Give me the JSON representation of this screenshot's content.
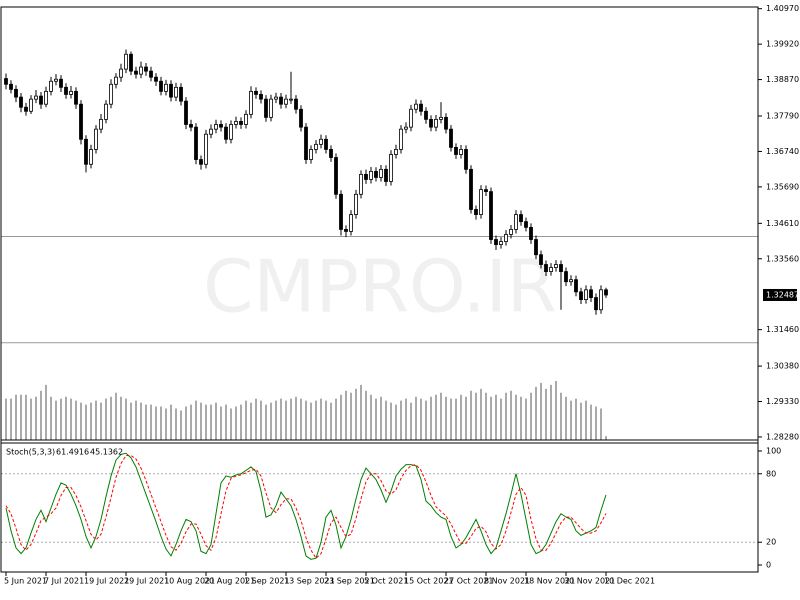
{
  "chart_data": [
    {
      "type": "candlestick",
      "watermark": "CMPRO.IR",
      "categories": [
        "5 Jun 2021",
        null,
        null,
        null,
        null,
        null,
        null,
        null,
        "7 Jul 2021",
        null,
        null,
        null,
        null,
        null,
        null,
        null,
        "19 Jul 2021",
        null,
        null,
        null,
        null,
        null,
        null,
        null,
        "29 Jul 2021",
        null,
        null,
        null,
        null,
        null,
        null,
        null,
        "10 Aug 2021",
        null,
        null,
        null,
        null,
        null,
        null,
        null,
        "20 Aug 2021",
        null,
        null,
        null,
        null,
        null,
        null,
        null,
        "1 Sep 2021",
        null,
        null,
        null,
        null,
        null,
        null,
        null,
        "13 Sep 2021",
        null,
        null,
        null,
        null,
        null,
        null,
        null,
        "23 Sep 2021",
        null,
        null,
        null,
        null,
        null,
        null,
        null,
        "5 Oct 2021",
        null,
        null,
        null,
        null,
        null,
        null,
        null,
        "15 Oct 2021",
        null,
        null,
        null,
        null,
        null,
        null,
        null,
        "27 Oct 2021",
        null,
        null,
        null,
        null,
        null,
        null,
        null,
        "8 Nov 2021",
        null,
        null,
        null,
        null,
        null,
        null,
        null,
        "18 Nov 2021",
        null,
        null,
        null,
        null,
        null,
        null,
        null,
        "30 Nov 2021",
        null,
        null,
        null,
        null,
        null,
        null,
        null,
        "10 Dec 2021"
      ],
      "open": [
        1.389,
        1.3873,
        1.3858,
        1.3835,
        1.3805,
        1.3793,
        1.3829,
        1.3838,
        1.3814,
        1.3852,
        1.3882,
        1.3888,
        1.3864,
        1.3843,
        1.3852,
        1.3814,
        1.371,
        1.3636,
        1.368,
        1.374,
        1.3769,
        1.3814,
        1.3873,
        1.3894,
        1.3918,
        1.3962,
        1.3912,
        1.3903,
        1.3924,
        1.3912,
        1.3894,
        1.3882,
        1.3852,
        1.3873,
        1.3835,
        1.3864,
        1.3823,
        1.3754,
        1.3746,
        1.365,
        1.3636,
        1.3725,
        1.374,
        1.3754,
        1.3746,
        1.371,
        1.3754,
        1.3763,
        1.3754,
        1.3784,
        1.3852,
        1.3843,
        1.3829,
        1.3775,
        1.3829,
        1.3835,
        1.3814,
        1.3829,
        1.3829,
        1.3799,
        1.3746,
        1.365,
        1.368,
        1.3695,
        1.371,
        1.368,
        1.3656,
        1.3547,
        1.3443,
        1.3437,
        1.3487,
        1.3547,
        1.3606,
        1.3591,
        1.3615,
        1.3597,
        1.3621,
        1.3585,
        1.3665,
        1.368,
        1.374,
        1.3746,
        1.3799,
        1.3814,
        1.3793,
        1.3769,
        1.3746,
        1.3769,
        1.3775,
        1.374,
        1.3686,
        1.3665,
        1.368,
        1.3621,
        1.3502,
        1.3487,
        1.3561,
        1.3555,
        1.3413,
        1.3398,
        1.3407,
        1.3428,
        1.3443,
        1.3487,
        1.3466,
        1.3449,
        1.3413,
        1.3368,
        1.3339,
        1.3318,
        1.333,
        1.3339,
        1.3318,
        1.3288,
        1.3294,
        1.3258,
        1.3235,
        1.3264,
        1.3241,
        1.3205,
        1.3264
      ],
      "high": [
        1.3905,
        1.3885,
        1.387,
        1.3847,
        1.3818,
        1.3841,
        1.3856,
        1.385,
        1.3866,
        1.3895,
        1.3903,
        1.39,
        1.3876,
        1.3868,
        1.3864,
        1.3826,
        1.3722,
        1.3694,
        1.3752,
        1.3785,
        1.3826,
        1.3888,
        1.3906,
        1.3934,
        1.3976,
        1.397,
        1.3925,
        1.394,
        1.3936,
        1.3925,
        1.3906,
        1.3895,
        1.3886,
        1.3885,
        1.3877,
        1.3876,
        1.3835,
        1.3768,
        1.3758,
        1.3662,
        1.3738,
        1.3754,
        1.3768,
        1.3766,
        1.3758,
        1.3766,
        1.3777,
        1.3775,
        1.3796,
        1.3867,
        1.3864,
        1.3855,
        1.3841,
        1.3842,
        1.3848,
        1.3847,
        1.3842,
        1.391,
        1.3841,
        1.3811,
        1.3758,
        1.3692,
        1.3708,
        1.3724,
        1.3722,
        1.3692,
        1.3668,
        1.3559,
        1.3455,
        1.35,
        1.356,
        1.3618,
        1.362,
        1.3628,
        1.3627,
        1.3634,
        1.3633,
        1.3678,
        1.3694,
        1.3752,
        1.376,
        1.3812,
        1.3828,
        1.3826,
        1.3805,
        1.3781,
        1.3782,
        1.382,
        1.3787,
        1.3752,
        1.3698,
        1.3693,
        1.3692,
        1.3633,
        1.3514,
        1.3574,
        1.3573,
        1.3567,
        1.3425,
        1.342,
        1.3441,
        1.3456,
        1.35,
        1.3499,
        1.3478,
        1.3461,
        1.3425,
        1.338,
        1.3351,
        1.3343,
        1.3352,
        1.3351,
        1.333,
        1.3307,
        1.3306,
        1.327,
        1.3277,
        1.3276,
        1.3253,
        1.3277,
        1.327
      ],
      "low": [
        1.3858,
        1.3846,
        1.382,
        1.379,
        1.378,
        1.3785,
        1.3817,
        1.38,
        1.3805,
        1.384,
        1.387,
        1.385,
        1.383,
        1.3831,
        1.38,
        1.3695,
        1.3612,
        1.3624,
        1.3668,
        1.3728,
        1.3757,
        1.3802,
        1.3861,
        1.388,
        1.3906,
        1.39,
        1.389,
        1.3891,
        1.3898,
        1.3882,
        1.3868,
        1.384,
        1.384,
        1.3822,
        1.3823,
        1.381,
        1.374,
        1.3734,
        1.3636,
        1.362,
        1.3624,
        1.3713,
        1.3728,
        1.3733,
        1.3697,
        1.3698,
        1.3742,
        1.3741,
        1.3742,
        1.3772,
        1.383,
        1.3816,
        1.3762,
        1.3763,
        1.3817,
        1.3801,
        1.3802,
        1.3815,
        1.3786,
        1.3733,
        1.3637,
        1.3638,
        1.3668,
        1.3683,
        1.3668,
        1.3643,
        1.3534,
        1.3425,
        1.342,
        1.3425,
        1.3475,
        1.3535,
        1.3578,
        1.3579,
        1.3585,
        1.3585,
        1.3572,
        1.3573,
        1.3653,
        1.3668,
        1.3728,
        1.3734,
        1.3787,
        1.378,
        1.3756,
        1.3734,
        1.3734,
        1.3757,
        1.3727,
        1.3674,
        1.3652,
        1.3653,
        1.3608,
        1.349,
        1.3472,
        1.3475,
        1.3542,
        1.34,
        1.3382,
        1.3386,
        1.3395,
        1.3416,
        1.3431,
        1.3454,
        1.3437,
        1.34,
        1.3355,
        1.3327,
        1.3305,
        1.3306,
        1.3318,
        1.3205,
        1.3275,
        1.3276,
        1.3245,
        1.3222,
        1.3223,
        1.3228,
        1.319,
        1.3193,
        1.324
      ],
      "close": [
        1.3873,
        1.3858,
        1.3835,
        1.3805,
        1.3793,
        1.3829,
        1.3838,
        1.3814,
        1.3852,
        1.3882,
        1.3888,
        1.3864,
        1.3843,
        1.3852,
        1.3814,
        1.371,
        1.3636,
        1.368,
        1.374,
        1.3769,
        1.3814,
        1.3873,
        1.3894,
        1.3918,
        1.3962,
        1.3912,
        1.3903,
        1.3924,
        1.3912,
        1.3894,
        1.3882,
        1.3852,
        1.3873,
        1.3835,
        1.3864,
        1.3823,
        1.3754,
        1.3746,
        1.365,
        1.3636,
        1.3725,
        1.374,
        1.3754,
        1.3746,
        1.371,
        1.3754,
        1.3763,
        1.3754,
        1.3784,
        1.3852,
        1.3843,
        1.3829,
        1.3775,
        1.3829,
        1.3835,
        1.3814,
        1.3829,
        1.3829,
        1.3799,
        1.3746,
        1.365,
        1.368,
        1.3695,
        1.371,
        1.368,
        1.3656,
        1.3547,
        1.3443,
        1.3437,
        1.3487,
        1.3547,
        1.3606,
        1.3591,
        1.3615,
        1.3597,
        1.3621,
        1.3585,
        1.3665,
        1.368,
        1.374,
        1.3746,
        1.3799,
        1.3814,
        1.3793,
        1.3769,
        1.3746,
        1.3769,
        1.3775,
        1.374,
        1.3686,
        1.3665,
        1.368,
        1.3621,
        1.3502,
        1.3487,
        1.3561,
        1.3555,
        1.3413,
        1.3398,
        1.3407,
        1.3428,
        1.3443,
        1.3487,
        1.3466,
        1.3449,
        1.3413,
        1.3368,
        1.3339,
        1.3318,
        1.333,
        1.3339,
        1.3318,
        1.3288,
        1.3294,
        1.3258,
        1.3235,
        1.3264,
        1.3241,
        1.3205,
        1.3264,
        1.32487
      ],
      "volume": [
        21,
        21,
        23,
        23,
        23,
        21,
        22,
        25,
        28,
        22,
        20,
        21,
        22,
        21,
        20,
        19,
        18,
        19,
        20,
        19,
        21,
        22,
        24,
        22,
        21,
        19,
        20,
        19,
        18,
        18,
        17,
        17,
        16,
        18,
        16,
        15,
        17,
        18,
        20,
        19,
        18,
        18,
        19,
        17,
        18,
        16,
        17,
        18,
        20,
        19,
        21,
        20,
        18,
        19,
        20,
        21,
        20,
        21,
        22,
        21,
        20,
        19,
        20,
        21,
        20,
        19,
        21,
        23,
        25,
        24,
        26,
        28,
        25,
        23,
        21,
        22,
        20,
        19,
        18,
        20,
        21,
        19,
        22,
        21,
        20,
        22,
        23,
        24,
        22,
        21,
        21,
        23,
        22,
        25,
        24,
        26,
        24,
        22,
        23,
        21,
        24,
        25,
        23,
        22,
        21,
        24,
        27,
        29,
        26,
        28,
        30,
        24,
        22,
        20,
        21,
        19,
        20,
        18,
        17,
        16,
        2
      ],
      "volume_lim": [
        0,
        220
      ],
      "bid": 1.32487,
      "hlines": [
        1.3422,
        1.3107
      ],
      "ylim": [
        1.2819,
        1.4102
      ],
      "yticks": [
        {
          "value": 1.4097,
          "label": "1.40970"
        },
        {
          "value": 1.3992,
          "label": "1.39920"
        },
        {
          "value": 1.3887,
          "label": "1.38870"
        },
        {
          "value": 1.3779,
          "label": "1.37790"
        },
        {
          "value": 1.3674,
          "label": "1.36740"
        },
        {
          "value": 1.3569,
          "label": "1.35690"
        },
        {
          "value": 1.3461,
          "label": "1.34610"
        },
        {
          "value": 1.3356,
          "label": "1.33560"
        },
        {
          "value": 1.3146,
          "label": "1.31460"
        },
        {
          "value": 1.3038,
          "label": "1.30380"
        },
        {
          "value": 1.2933,
          "label": "1.29330"
        },
        {
          "value": 1.2828,
          "label": "1.28280"
        }
      ]
    },
    {
      "type": "line",
      "title": "Stoch(5,3,3)",
      "series": [
        {
          "color": "#008000",
          "style": "solid",
          "values": [
            50,
            30,
            15,
            10,
            15,
            28,
            40,
            48,
            38,
            50,
            62,
            72,
            70,
            62,
            52,
            40,
            25,
            15,
            25,
            40,
            60,
            78,
            92,
            97,
            98,
            94,
            86,
            74,
            62,
            50,
            38,
            25,
            14,
            8,
            18,
            30,
            40,
            38,
            30,
            12,
            10,
            18,
            45,
            72,
            78,
            77,
            79,
            80,
            83,
            86,
            82,
            65,
            42,
            44,
            52,
            64,
            58,
            52,
            40,
            25,
            8,
            5,
            6,
            20,
            42,
            48,
            35,
            15,
            25,
            40,
            58,
            75,
            85,
            80,
            75,
            66,
            55,
            65,
            78,
            84,
            88,
            88,
            87,
            75,
            56,
            52,
            46,
            42,
            40,
            25,
            15,
            18,
            24,
            32,
            40,
            30,
            18,
            10,
            15,
            30,
            45,
            62,
            80,
            62,
            40,
            18,
            10,
            12,
            18,
            28,
            38,
            45,
            42,
            40,
            30,
            26,
            28,
            30,
            33,
            48,
            61.4916
          ]
        },
        {
          "color": "#ff0000",
          "style": "dashed",
          "values": [
            52,
            45,
            32,
            18,
            13,
            18,
            28,
            39,
            42,
            45,
            50,
            61,
            68,
            68,
            61,
            51,
            39,
            27,
            22,
            27,
            42,
            59,
            77,
            89,
            96,
            96,
            93,
            85,
            74,
            62,
            50,
            38,
            26,
            16,
            13,
            19,
            29,
            36,
            36,
            27,
            17,
            13,
            24,
            45,
            65,
            76,
            78,
            79,
            81,
            83,
            84,
            78,
            63,
            50,
            46,
            53,
            58,
            58,
            50,
            39,
            24,
            13,
            6,
            10,
            23,
            37,
            42,
            33,
            25,
            27,
            41,
            58,
            73,
            80,
            80,
            74,
            65,
            62,
            66,
            76,
            83,
            87,
            88,
            83,
            73,
            61,
            51,
            47,
            43,
            36,
            27,
            19,
            19,
            25,
            32,
            34,
            29,
            19,
            14,
            18,
            30,
            46,
            62,
            68,
            61,
            40,
            23,
            13,
            13,
            19,
            28,
            37,
            42,
            42,
            37,
            32,
            28,
            28,
            30,
            37,
            45.1362
          ]
        }
      ],
      "ylim": [
        -7,
        107
      ],
      "yticks": [
        100,
        80,
        20,
        0
      ],
      "levels": [
        80,
        20
      ]
    }
  ]
}
